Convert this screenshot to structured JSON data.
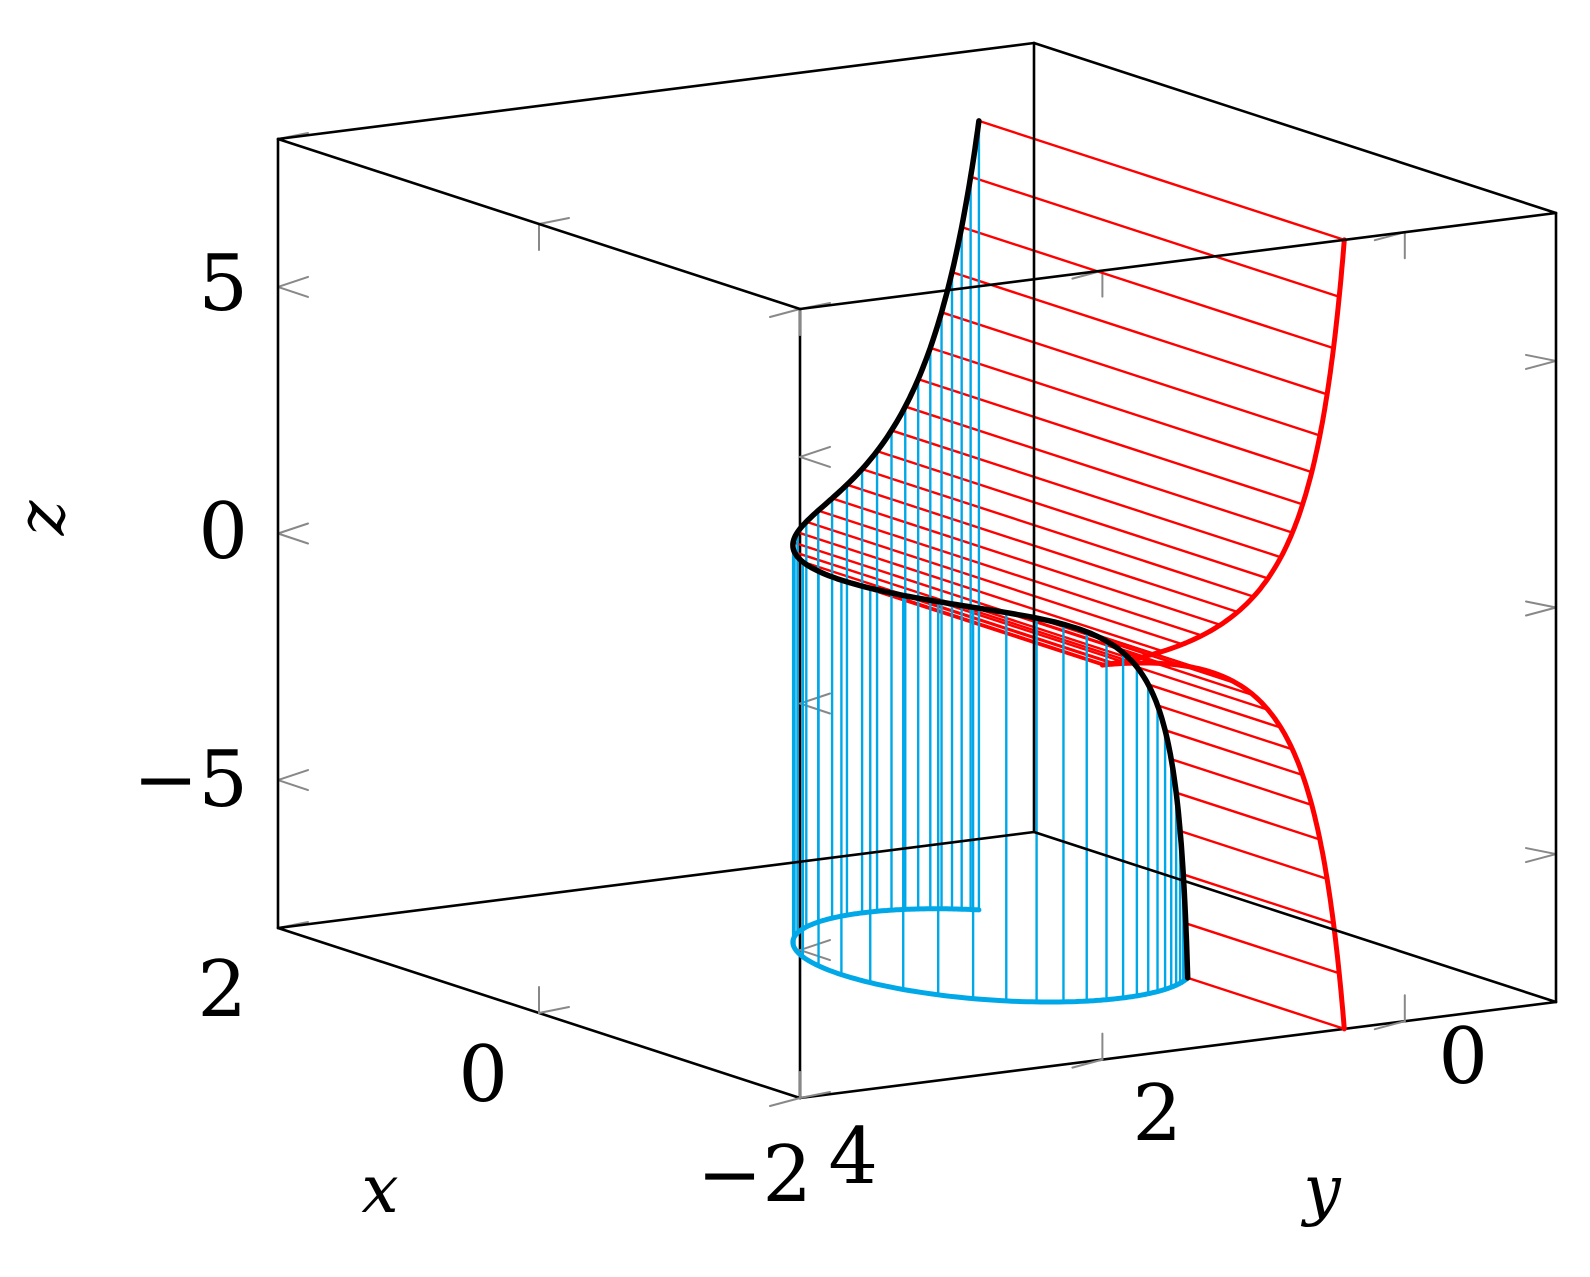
{
  "chart_data": {
    "type": "line3d",
    "xlabel": "x",
    "ylabel": "y",
    "zlabel": "z",
    "xlim": [
      -2,
      2
    ],
    "ylim": [
      -1,
      4
    ],
    "zlim": [
      -8,
      8
    ],
    "x_ticks": [
      "2",
      "0",
      "−2"
    ],
    "y_ticks": [
      "4",
      "2",
      "0"
    ],
    "z_ticks": [
      "5",
      "0",
      "−5"
    ],
    "x_tick_values": [
      2,
      0,
      -2
    ],
    "y_tick_values": [
      4,
      2,
      0
    ],
    "z_tick_values": [
      5,
      0,
      -5
    ],
    "curve": {
      "description": "space curve x = 2t/(1+t^2), y = 2/(1+t^2), z = t^3, t in [-2, 2]",
      "t_range": [
        -2,
        2
      ],
      "x": [
        -0.8,
        -0.8824,
        -0.96,
        -1.0407,
        -1.1009,
        -1.2,
        -1.2,
        -1.2,
        -1.1009,
        -0.9605,
        -0.8,
        -0.6236,
        -0.4,
        -0.2,
        0.0,
        0.2,
        0.4,
        0.6236,
        0.8,
        0.9605,
        1.1009,
        1.2,
        1.2,
        1.1009,
        0.96,
        0.8824,
        0.8
      ],
      "y": [
        0.4,
        0.4706,
        0.5517,
        0.6667,
        0.8,
        1.0,
        1.2,
        1.4,
        1.6,
        1.7647,
        1.8,
        1.9231,
        1.9608,
        1.9901,
        2.0,
        1.9901,
        1.9608,
        1.9231,
        1.8,
        1.7647,
        1.6,
        1.4,
        1.2,
        1.0,
        0.5517,
        0.4706,
        0.4
      ],
      "z": [
        -8.0,
        -6.6,
        -4.913,
        -3.375,
        -2.197,
        -1.331,
        -0.729,
        -0.343,
        -0.125,
        -0.027,
        -0.008,
        -0.001,
        0.0,
        0.001,
        0.0,
        0.001,
        0.008,
        0.027,
        0.125,
        0.343,
        0.729,
        1.331,
        2.197,
        3.375,
        4.913,
        6.6,
        8.0
      ]
    },
    "series": [
      {
        "name": "",
        "color": "#000000",
        "role": "3D curve"
      },
      {
        "name": "",
        "color": "#ff0000",
        "role": "projection onto x = −2 wall with horizontal drop lines"
      },
      {
        "name": "",
        "color": "#00a8e8",
        "role": "projection onto z = −8 floor with vertical drop lines"
      }
    ],
    "grid": false,
    "box": "full",
    "tick_marks": "arrow-style grey marks on the box faces"
  }
}
